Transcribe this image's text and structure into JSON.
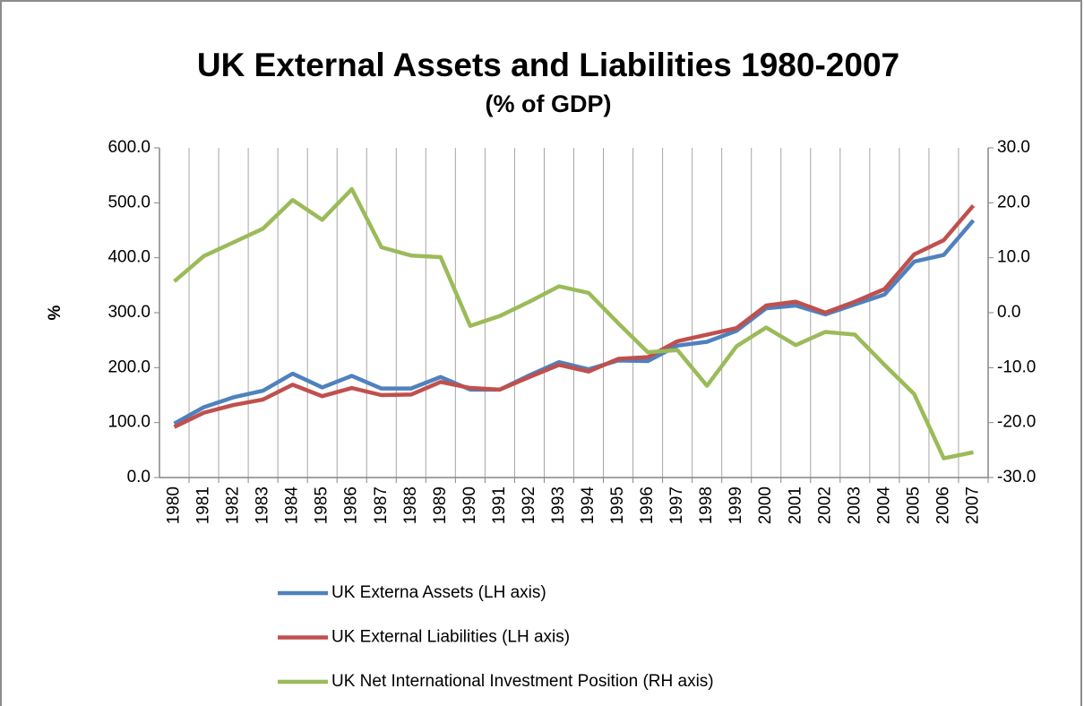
{
  "chart_data": {
    "type": "line",
    "title": "UK External Assets and Liabilities  1980-2007",
    "subtitle": "(% of GDP)",
    "ylabel": "%",
    "categories": [
      "1980",
      "1981",
      "1982",
      "1983",
      "1984",
      "1985",
      "1986",
      "1987",
      "1988",
      "1989",
      "1990",
      "1991",
      "1992",
      "1993",
      "1994",
      "1995",
      "1996",
      "1997",
      "1998",
      "1999",
      "2000",
      "2001",
      "2002",
      "2003",
      "2004",
      "2005",
      "2006",
      "2007"
    ],
    "series": [
      {
        "name": "UK Externa Assets (LH axis)",
        "color": "#4f81bd",
        "values": [
          98,
          128,
          146,
          158,
          189,
          164,
          185,
          162,
          162,
          183,
          160,
          160,
          186,
          210,
          197,
          213,
          212,
          240,
          247,
          267,
          308,
          313,
          297,
          315,
          333,
          393,
          405,
          468
        ]
      },
      {
        "name": "UK External Liabilities (LH axis)",
        "color": "#c0504d",
        "values": [
          92,
          118,
          132,
          142,
          169,
          148,
          163,
          150,
          151,
          174,
          163,
          160,
          183,
          205,
          193,
          216,
          219,
          248,
          260,
          272,
          313,
          320,
          300,
          320,
          343,
          406,
          432,
          495
        ]
      },
      {
        "name": "UK Net International Investment Position (RH axis)",
        "color": "#9bbb59",
        "axis": "y2",
        "values": [
          5.7,
          10.3,
          12.8,
          15.3,
          20.5,
          16.9,
          22.5,
          11.9,
          10.4,
          10.1,
          -2.4,
          -0.6,
          2.0,
          4.8,
          3.6,
          -1.9,
          -7.2,
          -6.8,
          -13.3,
          -6.1,
          -2.7,
          -5.9,
          -3.5,
          -4.0,
          -9.5,
          -14.8,
          -26.5,
          -25.4
        ]
      }
    ],
    "ylim": [
      0,
      600
    ],
    "yticks": [
      {
        "value": 0,
        "label": "0.0"
      },
      {
        "value": 100,
        "label": "100.0"
      },
      {
        "value": 200,
        "label": "200.0"
      },
      {
        "value": 300,
        "label": "300.0"
      },
      {
        "value": 400,
        "label": "400.0"
      },
      {
        "value": 500,
        "label": "500.0"
      },
      {
        "value": 600,
        "label": "600.0"
      }
    ],
    "y2lim": [
      -30,
      30
    ],
    "y2ticks": [
      {
        "value": -30,
        "label": "-30.0"
      },
      {
        "value": -20,
        "label": "-20.0"
      },
      {
        "value": -10,
        "label": "-10.0"
      },
      {
        "value": 0,
        "label": "0.0"
      },
      {
        "value": 10,
        "label": "10.0"
      },
      {
        "value": 20,
        "label": "20.0"
      },
      {
        "value": 30,
        "label": "30.0"
      }
    ],
    "grid": "x",
    "legend": "bottom"
  }
}
